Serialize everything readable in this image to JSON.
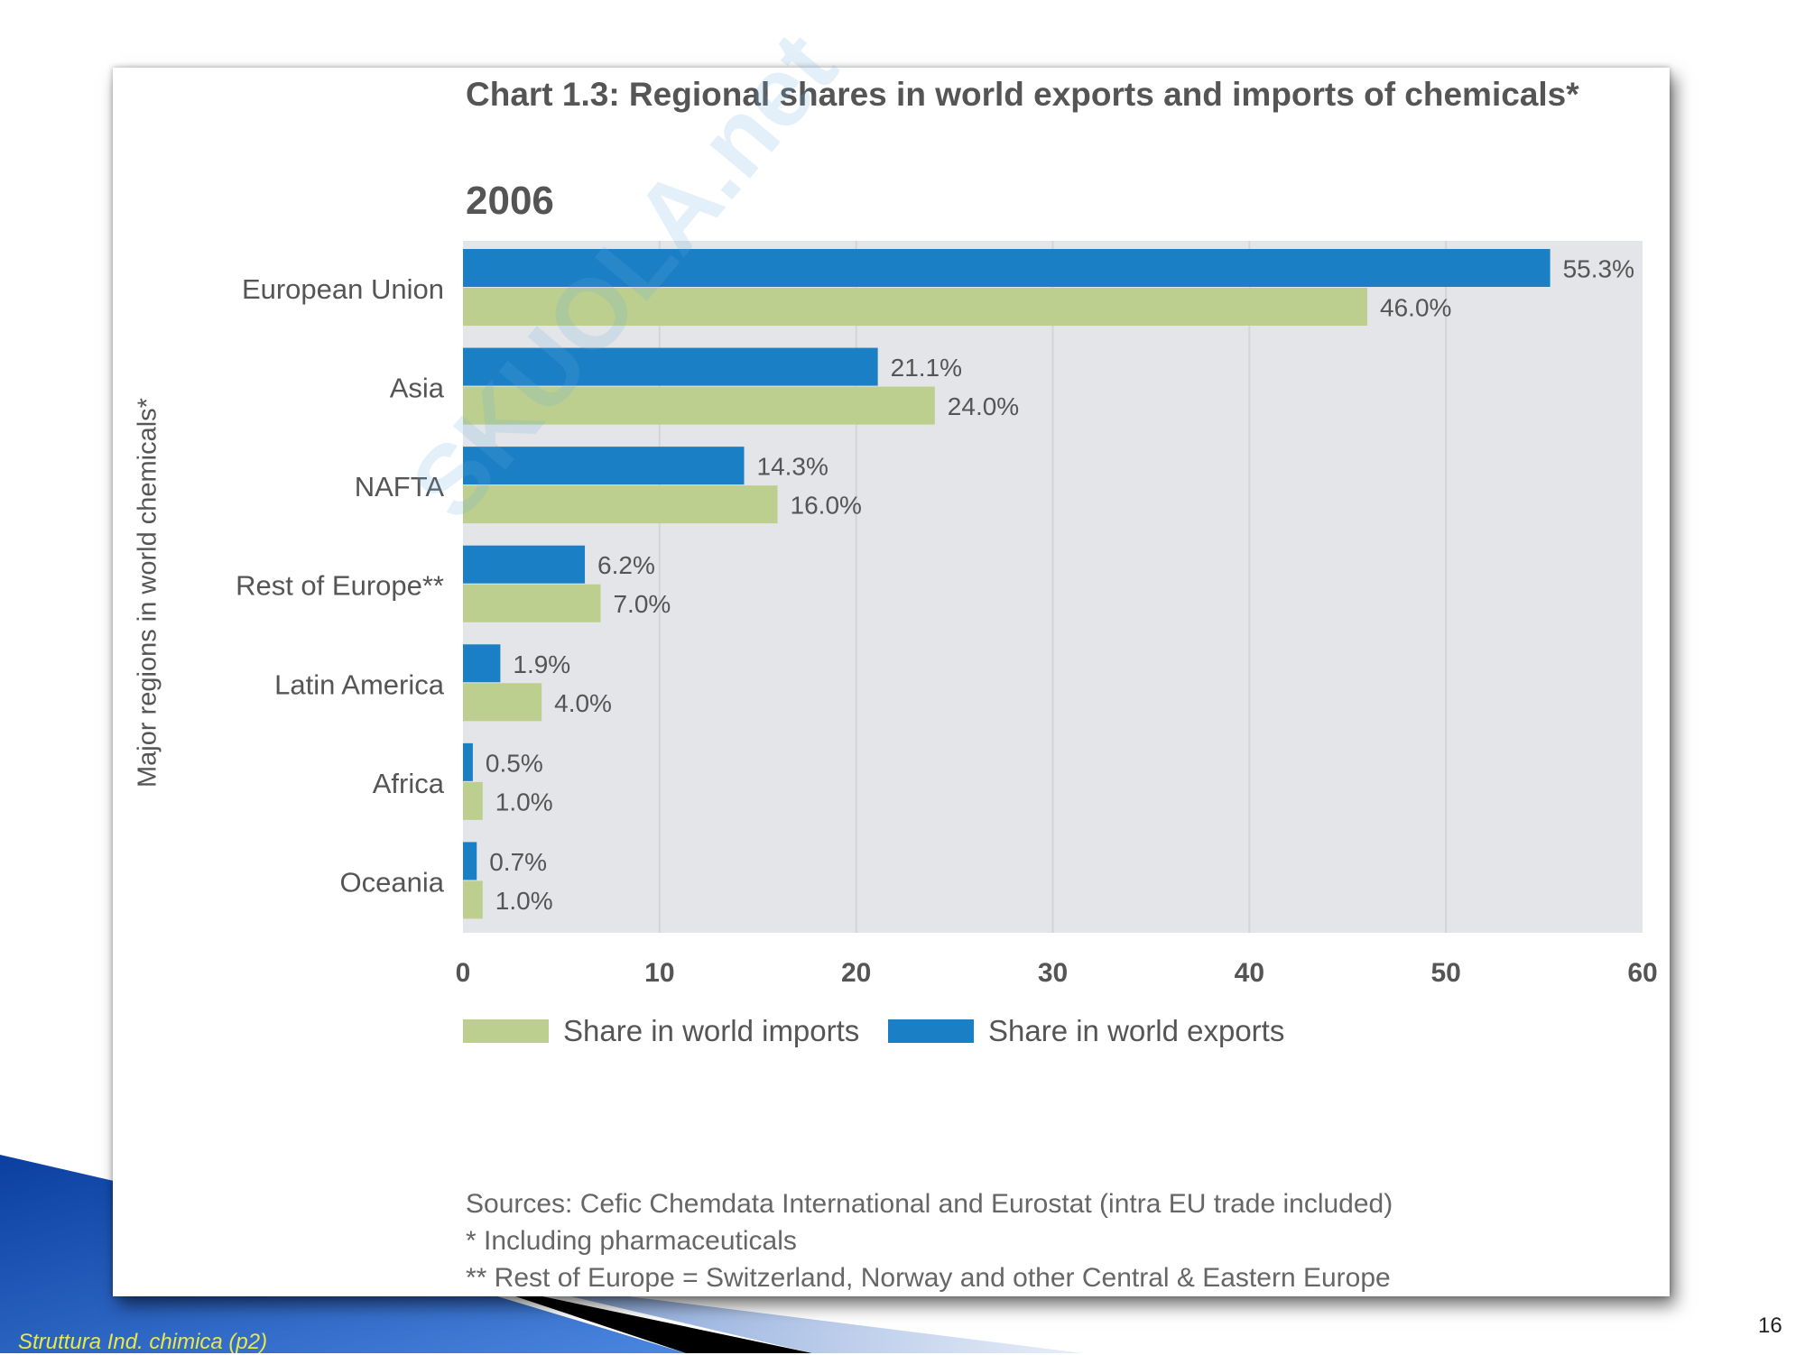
{
  "slide": {
    "footer": "Struttura Ind. chimica (p2)",
    "page_number": "16"
  },
  "chart_data": {
    "type": "bar",
    "orientation": "horizontal",
    "title": "Chart 1.3: Regional shares in world exports and imports of chemicals*",
    "subtitle": "2006",
    "ylabel": "Major regions in world chemicals*",
    "xlabel": "",
    "xlim": [
      0,
      60
    ],
    "xticks": [
      "0",
      "10",
      "20",
      "30",
      "40",
      "50",
      "60"
    ],
    "grid": true,
    "legend_position": "bottom-left",
    "categories": [
      "European Union",
      "Asia",
      "NAFTA",
      "Rest of Europe**",
      "Latin America",
      "Africa",
      "Oceania"
    ],
    "series": [
      {
        "name": "Share in world exports",
        "color": "#1a7fc4",
        "values": [
          55.3,
          21.1,
          14.3,
          6.2,
          1.9,
          0.5,
          0.7
        ],
        "labels": [
          "55.3%",
          "21.1%",
          "14.3%",
          "6.2%",
          "1.9%",
          "0.5%",
          "0.7%"
        ]
      },
      {
        "name": "Share in world imports",
        "color": "#bccf8e",
        "values": [
          46.0,
          24.0,
          16.0,
          7.0,
          4.0,
          1.0,
          1.0
        ],
        "labels": [
          "46.0%",
          "24.0%",
          "16.0%",
          "7.0%",
          "4.0%",
          "1.0%",
          "1.0%"
        ]
      }
    ],
    "legend": [
      "Share in world imports",
      "Share in world exports"
    ],
    "notes": [
      "Sources: Cefic Chemdata International and Eurostat (intra EU trade included)",
      "* Including pharmaceuticals",
      "** Rest of Europe = Switzerland, Norway and other Central & Eastern Europe"
    ]
  }
}
